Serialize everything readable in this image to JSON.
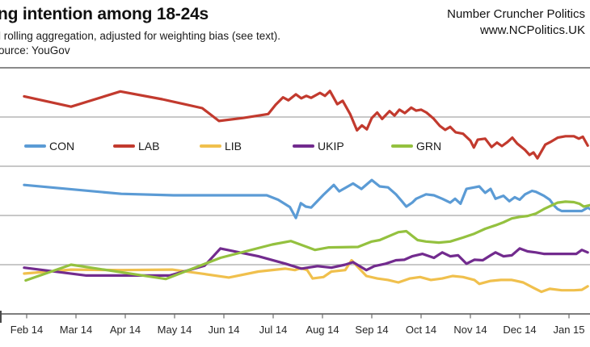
{
  "header": {
    "title": "ng intention among 18-24s",
    "subtitle": "l rolling aggregation, adjusted for weighting bias (see text).",
    "source": "ource: YouGov",
    "brand_line1": "Number Cruncher Politics",
    "brand_line2": "www.NCPolitics.UK"
  },
  "legend": [
    {
      "label": "CON",
      "color": "#5B9BD5"
    },
    {
      "label": "LAB",
      "color": "#C23A2E"
    },
    {
      "label": "LIB",
      "color": "#F0C04D"
    },
    {
      "label": "UKIP",
      "color": "#722B8E"
    },
    {
      "label": "GRN",
      "color": "#94C13F"
    }
  ],
  "colors": {
    "background": "#FFFFFF",
    "gridline": "#A8A8A8",
    "top_rule": "#8A8A8A",
    "axis": "#6B6B6B",
    "text": "#1A1A1A"
  },
  "chart_data": {
    "type": "line",
    "title": "ng intention among 18-24s",
    "x_axis": {
      "unit": "months_since_feb_2014",
      "tick_labels": [
        "Feb 14",
        "Mar 14",
        "Apr 14",
        "May 14",
        "Jun 14",
        "Jul 14",
        "Aug 14",
        "Sep 14",
        "Oct 14",
        "Nov 14",
        "Dec 14",
        "Jan 15"
      ],
      "range": [
        -0.1,
        11.45
      ]
    },
    "y_axis": {
      "min": 0,
      "max": 50,
      "gridline_step": 10,
      "labels_visible": false,
      "unit": "percent"
    },
    "legend_position": "inside-upper-left-row",
    "grid": true,
    "series": [
      {
        "name": "CON",
        "color": "#5B9BD5",
        "points": [
          [
            -0.05,
            26.2
          ],
          [
            1.92,
            24.4
          ],
          [
            2.98,
            24.1
          ],
          [
            4.87,
            24.1
          ],
          [
            5.1,
            23.2
          ],
          [
            5.34,
            21.7
          ],
          [
            5.46,
            19.5
          ],
          [
            5.56,
            22.5
          ],
          [
            5.66,
            21.8
          ],
          [
            5.77,
            21.6
          ],
          [
            6.02,
            24.2
          ],
          [
            6.23,
            26.2
          ],
          [
            6.34,
            24.9
          ],
          [
            6.62,
            26.5
          ],
          [
            6.79,
            25.4
          ],
          [
            7.0,
            27.2
          ],
          [
            7.16,
            25.9
          ],
          [
            7.33,
            25.7
          ],
          [
            7.49,
            24.3
          ],
          [
            7.61,
            22.9
          ],
          [
            7.7,
            21.8
          ],
          [
            7.82,
            22.6
          ],
          [
            7.9,
            23.4
          ],
          [
            8.1,
            24.3
          ],
          [
            8.26,
            24.1
          ],
          [
            8.43,
            23.4
          ],
          [
            8.59,
            22.6
          ],
          [
            8.69,
            23.4
          ],
          [
            8.8,
            22.4
          ],
          [
            8.92,
            25.4
          ],
          [
            9.08,
            25.7
          ],
          [
            9.18,
            25.9
          ],
          [
            9.3,
            24.6
          ],
          [
            9.41,
            25.4
          ],
          [
            9.51,
            23.4
          ],
          [
            9.67,
            24.0
          ],
          [
            9.79,
            22.9
          ],
          [
            9.9,
            23.7
          ],
          [
            10.0,
            23.2
          ],
          [
            10.11,
            24.3
          ],
          [
            10.25,
            25.0
          ],
          [
            10.33,
            24.8
          ],
          [
            10.49,
            24.0
          ],
          [
            10.61,
            23.2
          ],
          [
            10.69,
            22.1
          ],
          [
            10.77,
            21.3
          ],
          [
            10.85,
            20.9
          ],
          [
            11.1,
            20.9
          ],
          [
            11.26,
            20.9
          ],
          [
            11.38,
            21.6
          ],
          [
            11.43,
            21.3
          ]
        ]
      },
      {
        "name": "LAB",
        "color": "#C23A2E",
        "points": [
          [
            -0.05,
            44.2
          ],
          [
            0.9,
            42.1
          ],
          [
            1.9,
            45.2
          ],
          [
            2.75,
            43.6
          ],
          [
            3.56,
            41.8
          ],
          [
            3.9,
            39.2
          ],
          [
            4.39,
            39.8
          ],
          [
            4.9,
            40.6
          ],
          [
            5.05,
            42.5
          ],
          [
            5.2,
            44.0
          ],
          [
            5.31,
            43.4
          ],
          [
            5.46,
            44.6
          ],
          [
            5.57,
            43.8
          ],
          [
            5.67,
            44.3
          ],
          [
            5.77,
            43.9
          ],
          [
            5.95,
            44.9
          ],
          [
            6.05,
            44.3
          ],
          [
            6.15,
            45.3
          ],
          [
            6.3,
            42.6
          ],
          [
            6.41,
            43.3
          ],
          [
            6.56,
            40.6
          ],
          [
            6.7,
            37.3
          ],
          [
            6.8,
            38.3
          ],
          [
            6.9,
            37.5
          ],
          [
            7.0,
            39.8
          ],
          [
            7.11,
            40.9
          ],
          [
            7.21,
            39.6
          ],
          [
            7.36,
            41.2
          ],
          [
            7.46,
            40.3
          ],
          [
            7.56,
            41.5
          ],
          [
            7.67,
            40.8
          ],
          [
            7.8,
            41.9
          ],
          [
            7.9,
            41.3
          ],
          [
            8.0,
            41.5
          ],
          [
            8.11,
            40.9
          ],
          [
            8.25,
            39.7
          ],
          [
            8.38,
            38.2
          ],
          [
            8.49,
            37.4
          ],
          [
            8.59,
            38.0
          ],
          [
            8.7,
            36.9
          ],
          [
            8.85,
            36.6
          ],
          [
            9.0,
            35.2
          ],
          [
            9.07,
            33.8
          ],
          [
            9.15,
            35.4
          ],
          [
            9.3,
            35.6
          ],
          [
            9.43,
            33.9
          ],
          [
            9.54,
            34.8
          ],
          [
            9.64,
            34.1
          ],
          [
            9.75,
            34.9
          ],
          [
            9.85,
            35.8
          ],
          [
            9.95,
            34.6
          ],
          [
            10.11,
            33.3
          ],
          [
            10.2,
            32.3
          ],
          [
            10.28,
            32.8
          ],
          [
            10.36,
            31.6
          ],
          [
            10.52,
            34.4
          ],
          [
            10.62,
            34.9
          ],
          [
            10.77,
            35.8
          ],
          [
            10.93,
            36.1
          ],
          [
            11.1,
            36.1
          ],
          [
            11.2,
            35.6
          ],
          [
            11.28,
            36.0
          ],
          [
            11.38,
            34.2
          ]
        ]
      },
      {
        "name": "LIB",
        "color": "#F0C04D",
        "points": [
          [
            -0.05,
            8.2
          ],
          [
            0.44,
            8.6
          ],
          [
            0.9,
            9.0
          ],
          [
            1.92,
            8.9
          ],
          [
            2.95,
            9.0
          ],
          [
            3.61,
            8.1
          ],
          [
            4.1,
            7.4
          ],
          [
            4.7,
            8.6
          ],
          [
            5.25,
            9.2
          ],
          [
            5.44,
            8.9
          ],
          [
            5.56,
            9.3
          ],
          [
            5.69,
            8.9
          ],
          [
            5.8,
            7.2
          ],
          [
            6.02,
            7.5
          ],
          [
            6.18,
            8.6
          ],
          [
            6.46,
            8.9
          ],
          [
            6.59,
            10.9
          ],
          [
            6.72,
            9.5
          ],
          [
            6.89,
            7.7
          ],
          [
            7.11,
            7.2
          ],
          [
            7.33,
            6.9
          ],
          [
            7.54,
            6.4
          ],
          [
            7.77,
            7.2
          ],
          [
            7.98,
            7.5
          ],
          [
            8.2,
            6.9
          ],
          [
            8.43,
            7.2
          ],
          [
            8.64,
            7.7
          ],
          [
            8.85,
            7.5
          ],
          [
            9.08,
            6.9
          ],
          [
            9.18,
            6.1
          ],
          [
            9.41,
            6.7
          ],
          [
            9.62,
            6.9
          ],
          [
            9.84,
            6.9
          ],
          [
            10.07,
            6.4
          ],
          [
            10.28,
            5.3
          ],
          [
            10.44,
            4.5
          ],
          [
            10.61,
            5.1
          ],
          [
            10.85,
            4.8
          ],
          [
            11.1,
            4.8
          ],
          [
            11.26,
            4.9
          ],
          [
            11.38,
            5.6
          ]
        ]
      },
      {
        "name": "UKIP",
        "color": "#722B8E",
        "points": [
          [
            -0.05,
            9.4
          ],
          [
            1.21,
            7.8
          ],
          [
            2.9,
            7.8
          ],
          [
            3.61,
            9.8
          ],
          [
            3.93,
            13.3
          ],
          [
            4.7,
            11.7
          ],
          [
            5.25,
            10.2
          ],
          [
            5.57,
            9.2
          ],
          [
            5.9,
            9.7
          ],
          [
            6.18,
            9.4
          ],
          [
            6.46,
            10.0
          ],
          [
            6.62,
            10.5
          ],
          [
            6.89,
            8.9
          ],
          [
            7.05,
            9.7
          ],
          [
            7.28,
            10.2
          ],
          [
            7.49,
            10.9
          ],
          [
            7.66,
            11.0
          ],
          [
            7.82,
            11.7
          ],
          [
            8.03,
            12.2
          ],
          [
            8.26,
            11.4
          ],
          [
            8.43,
            12.5
          ],
          [
            8.59,
            11.7
          ],
          [
            8.75,
            11.9
          ],
          [
            8.92,
            10.2
          ],
          [
            9.08,
            11.0
          ],
          [
            9.25,
            10.9
          ],
          [
            9.41,
            11.9
          ],
          [
            9.51,
            12.5
          ],
          [
            9.67,
            11.7
          ],
          [
            9.84,
            11.9
          ],
          [
            10.0,
            13.3
          ],
          [
            10.16,
            12.7
          ],
          [
            10.33,
            12.5
          ],
          [
            10.49,
            12.2
          ],
          [
            10.69,
            12.2
          ],
          [
            10.93,
            12.2
          ],
          [
            11.15,
            12.2
          ],
          [
            11.26,
            13.0
          ],
          [
            11.38,
            12.5
          ]
        ]
      },
      {
        "name": "GRN",
        "color": "#94C13F",
        "points": [
          [
            -0.02,
            6.8
          ],
          [
            0.9,
            10.0
          ],
          [
            2.82,
            7.1
          ],
          [
            3.93,
            11.4
          ],
          [
            4.98,
            14.1
          ],
          [
            5.36,
            14.8
          ],
          [
            5.85,
            13.0
          ],
          [
            6.13,
            13.5
          ],
          [
            6.72,
            13.6
          ],
          [
            7.0,
            14.7
          ],
          [
            7.16,
            15.0
          ],
          [
            7.54,
            16.6
          ],
          [
            7.7,
            16.8
          ],
          [
            7.93,
            15.0
          ],
          [
            8.1,
            14.7
          ],
          [
            8.36,
            14.5
          ],
          [
            8.59,
            14.7
          ],
          [
            8.85,
            15.5
          ],
          [
            9.08,
            16.3
          ],
          [
            9.3,
            17.3
          ],
          [
            9.51,
            18.0
          ],
          [
            9.67,
            18.6
          ],
          [
            9.84,
            19.4
          ],
          [
            10.0,
            19.7
          ],
          [
            10.16,
            19.9
          ],
          [
            10.33,
            20.4
          ],
          [
            10.49,
            21.3
          ],
          [
            10.66,
            22.1
          ],
          [
            10.77,
            22.6
          ],
          [
            10.93,
            22.8
          ],
          [
            11.1,
            22.7
          ],
          [
            11.21,
            22.4
          ],
          [
            11.3,
            21.8
          ],
          [
            11.43,
            22.1
          ]
        ]
      }
    ]
  }
}
